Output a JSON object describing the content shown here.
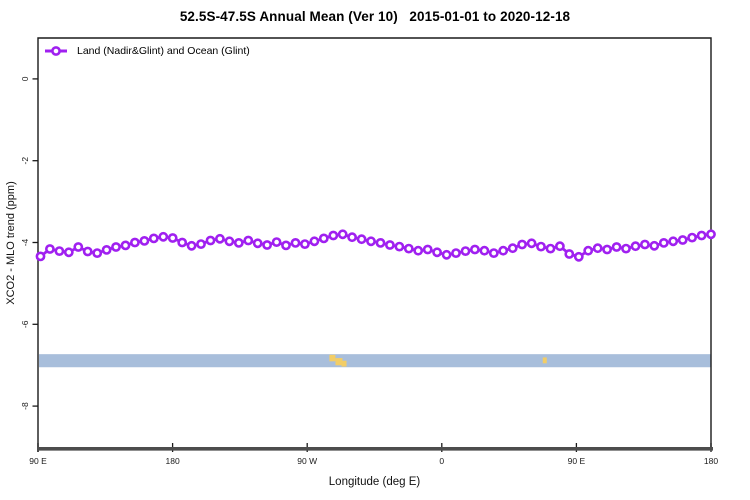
{
  "title": "52.5S-47.5S Annual Mean (Ver 10)   2015-01-01 to 2020-12-18",
  "legend": {
    "label": "Land (Nadir&Glint) and Ocean (Glint)",
    "marker_color": "#a020f0",
    "marker_shape": "open-circle-on-line"
  },
  "axes": {
    "x_label": "Longitude (deg E)",
    "y_label": "XCO2 - MLO trend (ppm)",
    "x_tick_labels": [
      "90 E",
      "180",
      "90 W",
      "0",
      "90 E",
      "180"
    ],
    "y_tick_labels": [
      "0",
      "-2",
      "-4",
      "-6",
      "-8"
    ]
  },
  "colors": {
    "series": "#a020f0",
    "map_band": "#a8bedb",
    "map_land": "#f2cd66",
    "frame": "#1a1a1a",
    "bottom_axis": "#4d4d4d",
    "tick_text": "#1a1a1a"
  },
  "chart_data": {
    "type": "line",
    "title": "52.5S-47.5S Annual Mean (Ver 10)   2015-01-01 to 2020-12-18",
    "xlabel": "Longitude (deg E)",
    "ylabel": "XCO2 - MLO trend (ppm)",
    "x_tick_labels": [
      "90 E",
      "180",
      "90 W",
      "0",
      "90 E",
      "180"
    ],
    "y_ticks": [
      0,
      -2,
      -4,
      -6,
      -8
    ],
    "ylim": [
      -9.0,
      1.0
    ],
    "grid": false,
    "legend_position": "top-left",
    "series": [
      {
        "name": "Land (Nadir&Glint) and Ocean (Glint)",
        "color": "#a020f0",
        "marker": "open-circle",
        "values": [
          -4.34,
          -4.16,
          -4.21,
          -4.24,
          -4.11,
          -4.22,
          -4.26,
          -4.18,
          -4.11,
          -4.07,
          -4.0,
          -3.96,
          -3.9,
          -3.86,
          -3.89,
          -4.0,
          -4.08,
          -4.04,
          -3.95,
          -3.91,
          -3.97,
          -4.01,
          -3.95,
          -4.02,
          -4.06,
          -3.99,
          -4.07,
          -4.01,
          -4.04,
          -3.97,
          -3.9,
          -3.83,
          -3.8,
          -3.87,
          -3.92,
          -3.97,
          -4.01,
          -4.06,
          -4.1,
          -4.15,
          -4.2,
          -4.17,
          -4.24,
          -4.3,
          -4.26,
          -4.21,
          -4.17,
          -4.2,
          -4.26,
          -4.2,
          -4.14,
          -4.05,
          -4.02,
          -4.1,
          -4.15,
          -4.09,
          -4.28,
          -4.35,
          -4.2,
          -4.14,
          -4.17,
          -4.11,
          -4.15,
          -4.09,
          -4.05,
          -4.08,
          -4.01,
          -3.97,
          -3.94,
          -3.88,
          -3.83,
          -3.8
        ]
      }
    ],
    "map_band": {
      "description": "latitude-band map strip (ocean with land patches)",
      "color": "#a8bedb",
      "y_from": -6.73,
      "y_to": -7.05,
      "land_color": "#f2cd66",
      "land_patches": [
        {
          "frac": 0.433,
          "w": 6,
          "y0": 0.05,
          "h": 0.5
        },
        {
          "frac": 0.442,
          "w": 7,
          "y0": 0.3,
          "h": 0.55
        },
        {
          "frac": 0.451,
          "w": 5,
          "y0": 0.5,
          "h": 0.45
        },
        {
          "frac": 0.75,
          "w": 4,
          "y0": 0.25,
          "h": 0.45
        }
      ]
    }
  }
}
